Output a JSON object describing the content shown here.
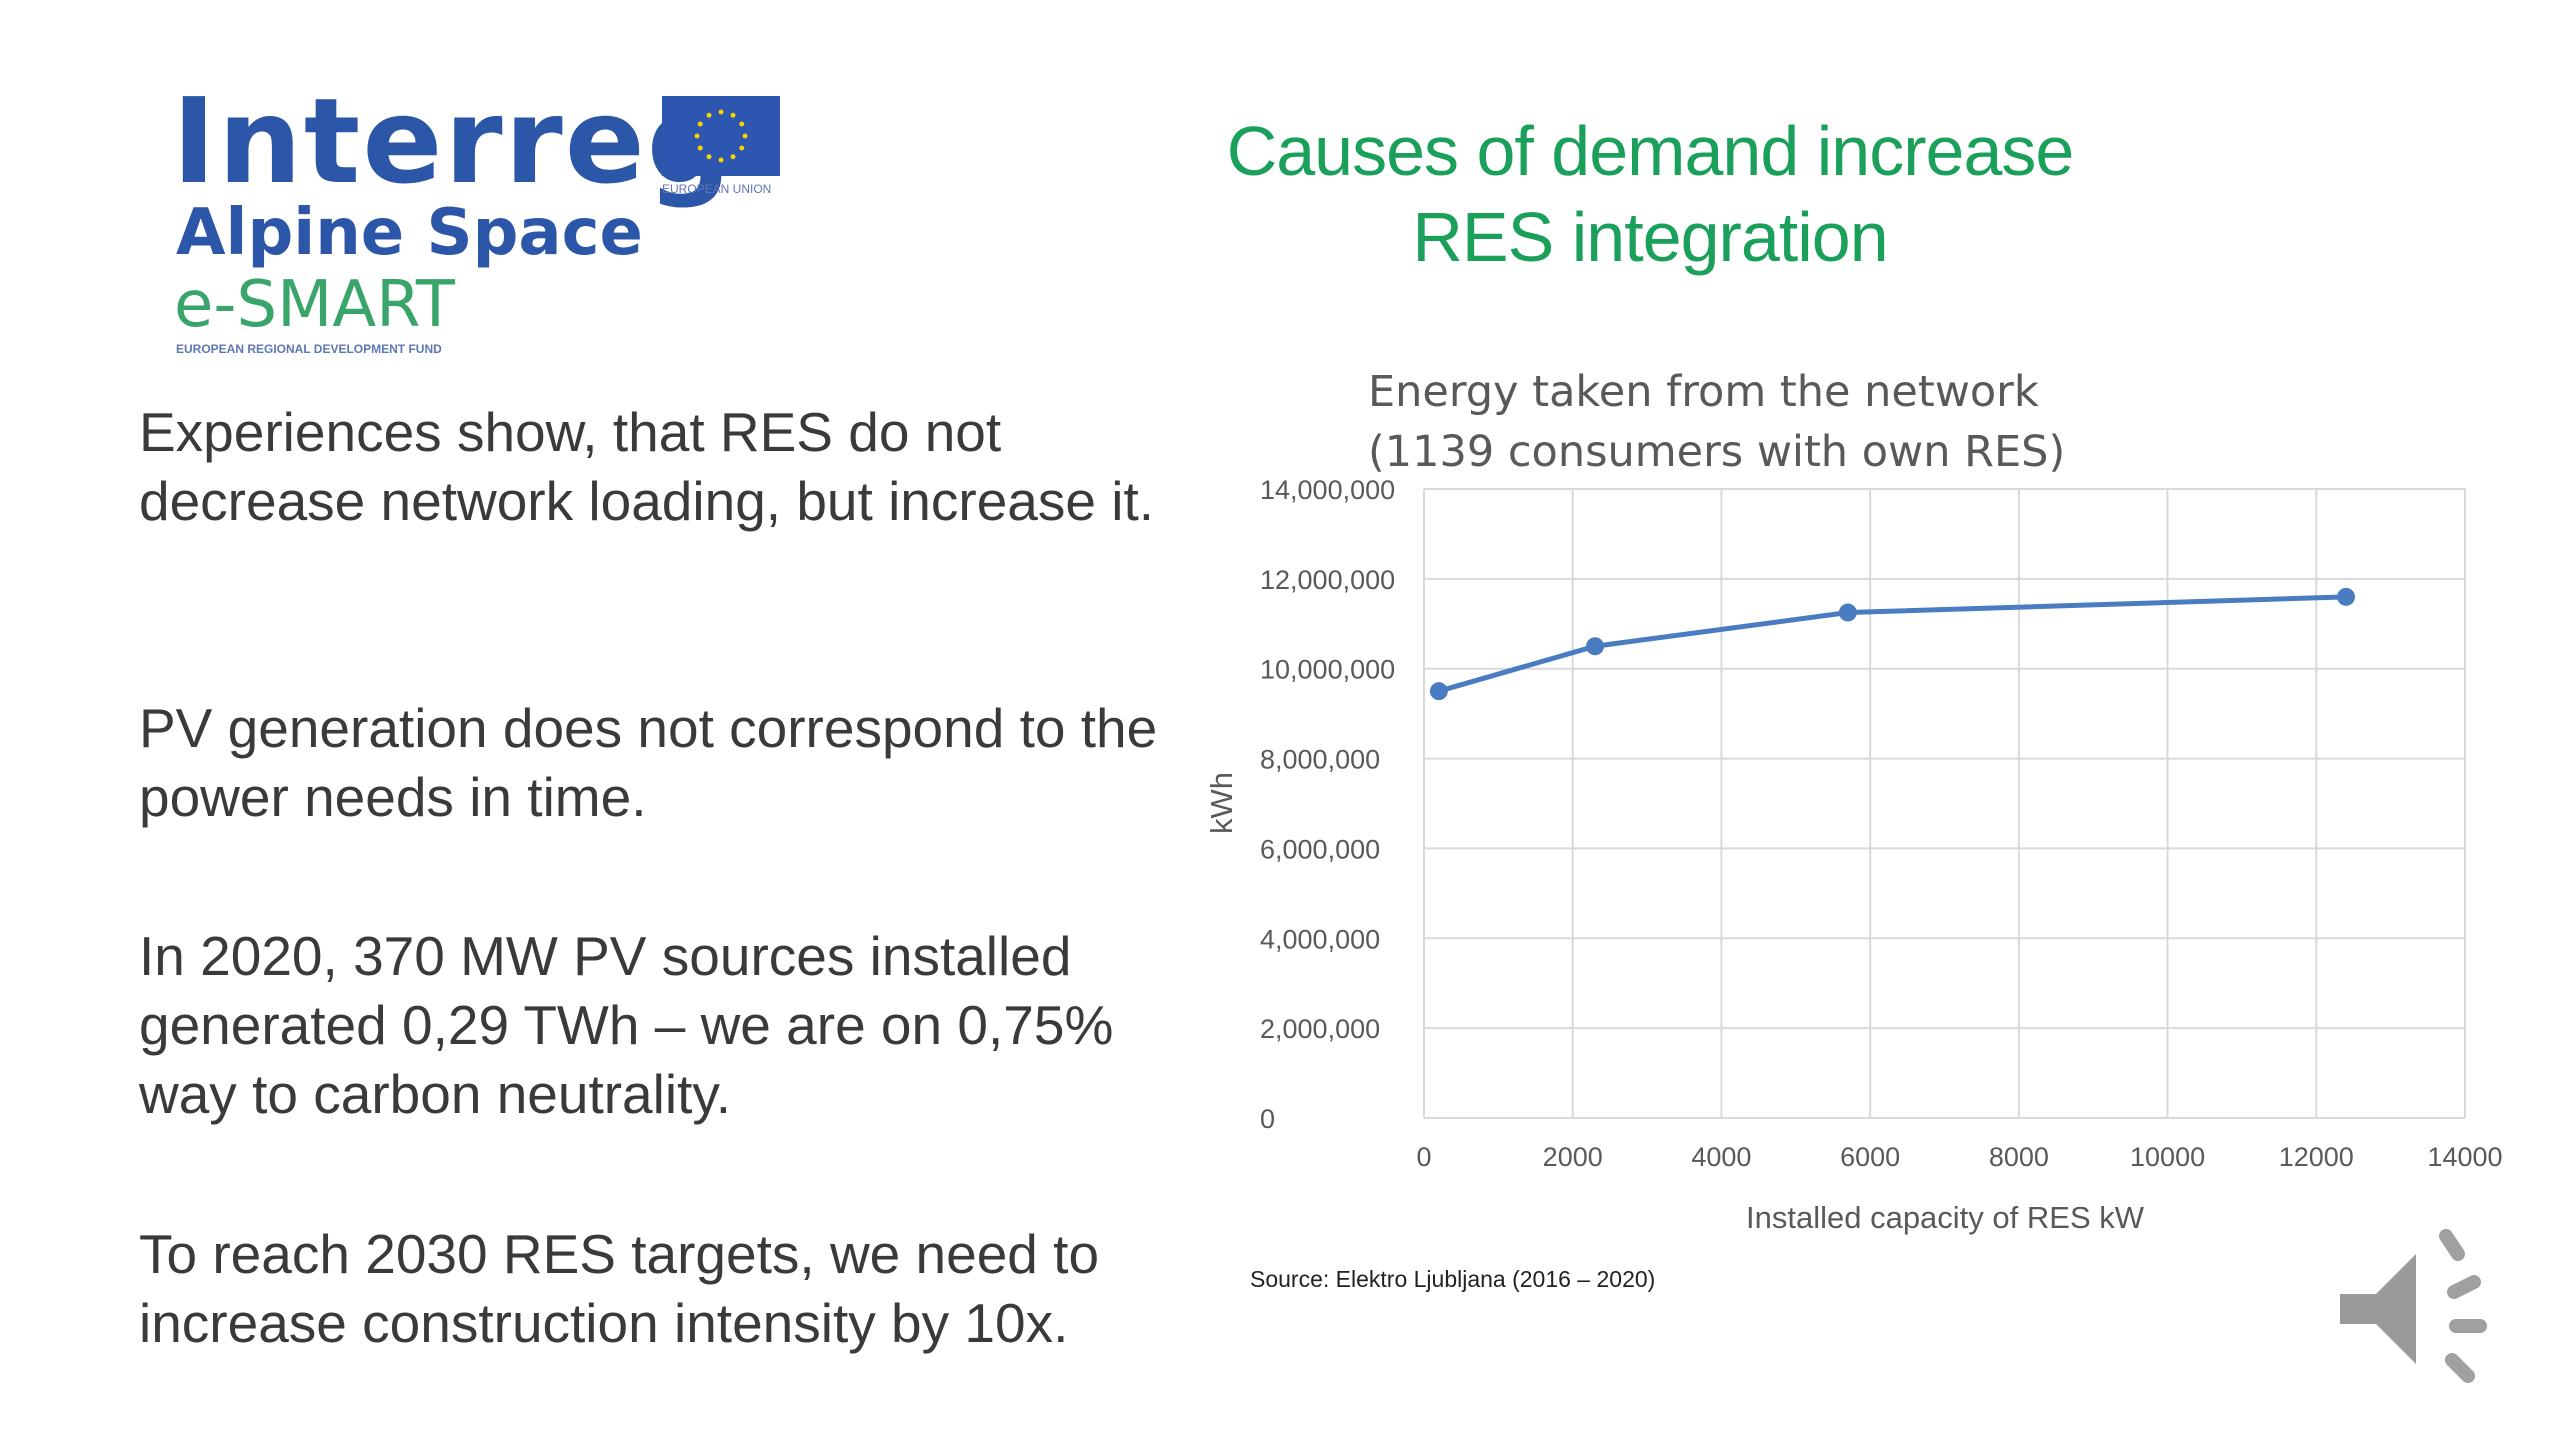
{
  "logo": {
    "interreg": "Interreg",
    "alpine": "Alpine Space",
    "esmart": "e-SMART",
    "erdf": "EUROPEAN REGIONAL DEVELOPMENT FUND",
    "eu": "EUROPEAN UNION"
  },
  "title": {
    "line1": "Causes of demand increase",
    "line2": "RES integration"
  },
  "paragraphs": [
    "Experiences show, that RES do not decrease network loading, but increase it.",
    "PV generation does not correspond to the power needs in time.",
    "In 2020, 370 MW PV sources installed generated 0,29 TWh – we are on 0,75% way to carbon neutrality.",
    "To reach 2030 RES targets, we need to increase construction intensity  by 10x."
  ],
  "source": "Source: Elektro Ljubljana (2016 – 2020)",
  "speaker_icon": "speaker-icon",
  "chart_data": {
    "type": "line",
    "title": [
      "Energy taken from the network",
      "(1139 consumers with own RES)"
    ],
    "xlabel": "Installed capacity of RES kW",
    "ylabel": "kWh",
    "xlim": [
      0,
      14000
    ],
    "ylim": [
      0,
      14000000
    ],
    "xticks": [
      "0",
      "2000",
      "4000",
      "6000",
      "8000",
      "10000",
      "12000",
      "14000"
    ],
    "yticks": [
      "0",
      "2,000,000",
      "4,000,000",
      "6,000,000",
      "8,000,000",
      "10,000,000",
      "12,000,000",
      "14,000,000"
    ],
    "grid": true,
    "color": "#4a7cc2",
    "series": [
      {
        "x": [
          200,
          2300,
          5700,
          12400
        ],
        "y": [
          9500000,
          10500000,
          11250000,
          11600000
        ]
      }
    ]
  }
}
